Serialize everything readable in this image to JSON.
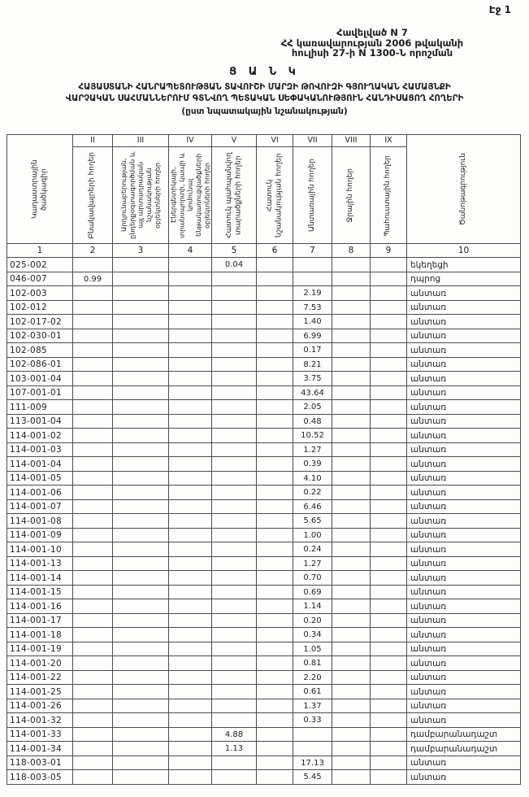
{
  "page": {
    "page_label": "Էջ 1"
  },
  "header": {
    "appendix_line1": "Հավելված N 7",
    "appendix_line2": "ՀՀ կառավարության 2006 թվականի",
    "appendix_line3": "հուլիսի 27-ի N 1300-Ն որոշման",
    "title": "Ց Ա Ն Կ",
    "subtitle_line1": "ՀԱՅԱՍՏԱՆԻ ՀԱՆՐԱՊԵՏՈՒԹՅԱՆ ՏԱՎՈՒՇԻ ՄԱՐԶԻ ԹՈՎՈՒԶԻ ԳՅՈՒՂԱԿԱՆ ՀԱՄԱՅՆՔԻ",
    "subtitle_line2": "ՎԱՐՉԱԿԱՆ ՍԱՀՄԱՆՆԵՐՈՒՄ ԳՏՆՎՈՂ ՊԵՏԱԿԱՆ ՍԵՓԱԿԱՆՈՒԹՅՈՒՆ ՀԱՆԴԻՍԱՑՈՂ ՀՈՂԵՐԻ",
    "subtitle_line3": "(ըստ նպատակային նշանակության)"
  },
  "table": {
    "roman_numerals": [
      "II",
      "III",
      "IV",
      "V",
      "VI",
      "VII",
      "VIII",
      "IX"
    ],
    "column_headers": [
      "Կադաստրային ծածկագիր",
      "Բնակավայրերի հողեր",
      "Արդյունաբերության, ընդերքօգտագործման և այլ արտադրական նշանակության օբյեկտների հողեր",
      "Էներգետիկայի, տրանսպորտի, կապի և կոմունալ ենթակառուցվածքների օբյեկտների հողեր",
      "Հատուկ պահպանվող տարածքների հողեր",
      "Հատուկ նշանակության հողեր",
      "Անտառային հողեր",
      "Ջրային հողեր",
      "Պահուստային հողեր",
      "Ծանոթագրություն"
    ],
    "column_numbers": [
      "1",
      "2",
      "3",
      "4",
      "5",
      "6",
      "7",
      "8",
      "9",
      "10"
    ],
    "rows": [
      {
        "code": "025-002",
        "values": [
          "",
          "",
          "",
          "0.04",
          "",
          "",
          "",
          ""
        ],
        "note": "եկեղեցի"
      },
      {
        "code": "046-007",
        "values": [
          "0.99",
          "",
          "",
          "",
          "",
          "",
          "",
          ""
        ],
        "note": "դպրոց"
      },
      {
        "code": "102-003",
        "values": [
          "",
          "",
          "",
          "",
          "",
          "2.19",
          "",
          ""
        ],
        "note": "անտառ"
      },
      {
        "code": "102-012",
        "values": [
          "",
          "",
          "",
          "",
          "",
          "7.53",
          "",
          ""
        ],
        "note": "անտառ"
      },
      {
        "code": "102-017-02",
        "values": [
          "",
          "",
          "",
          "",
          "",
          "1.40",
          "",
          ""
        ],
        "note": "անտառ"
      },
      {
        "code": "102-030-01",
        "values": [
          "",
          "",
          "",
          "",
          "",
          "6.99",
          "",
          ""
        ],
        "note": "անտառ"
      },
      {
        "code": "102-085",
        "values": [
          "",
          "",
          "",
          "",
          "",
          "0.17",
          "",
          ""
        ],
        "note": "անտառ"
      },
      {
        "code": "102-086-01",
        "values": [
          "",
          "",
          "",
          "",
          "",
          "8.21",
          "",
          ""
        ],
        "note": "անտառ"
      },
      {
        "code": "103-001-04",
        "values": [
          "",
          "",
          "",
          "",
          "",
          "3.75",
          "",
          ""
        ],
        "note": "անտառ"
      },
      {
        "code": "107-001-01",
        "values": [
          "",
          "",
          "",
          "",
          "",
          "43.64",
          "",
          ""
        ],
        "note": "անտառ"
      },
      {
        "code": "111-009",
        "values": [
          "",
          "",
          "",
          "",
          "",
          "2.05",
          "",
          ""
        ],
        "note": "անտառ"
      },
      {
        "code": "113-001-04",
        "values": [
          "",
          "",
          "",
          "",
          "",
          "0.48",
          "",
          ""
        ],
        "note": "անտառ"
      },
      {
        "code": "114-001-02",
        "values": [
          "",
          "",
          "",
          "",
          "",
          "10.52",
          "",
          ""
        ],
        "note": "անտառ"
      },
      {
        "code": "114-001-03",
        "values": [
          "",
          "",
          "",
          "",
          "",
          "1.27",
          "",
          ""
        ],
        "note": "անտառ"
      },
      {
        "code": "114-001-04",
        "values": [
          "",
          "",
          "",
          "",
          "",
          "0.39",
          "",
          ""
        ],
        "note": "անտառ"
      },
      {
        "code": "114-001-05",
        "values": [
          "",
          "",
          "",
          "",
          "",
          "4.10",
          "",
          ""
        ],
        "note": "անտառ"
      },
      {
        "code": "114-001-06",
        "values": [
          "",
          "",
          "",
          "",
          "",
          "0.22",
          "",
          ""
        ],
        "note": "անտառ"
      },
      {
        "code": "114-001-07",
        "values": [
          "",
          "",
          "",
          "",
          "",
          "6.46",
          "",
          ""
        ],
        "note": "անտառ"
      },
      {
        "code": "114-001-08",
        "values": [
          "",
          "",
          "",
          "",
          "",
          "5.65",
          "",
          ""
        ],
        "note": "անտառ"
      },
      {
        "code": "114-001-09",
        "values": [
          "",
          "",
          "",
          "",
          "",
          "1.00",
          "",
          ""
        ],
        "note": "անտառ"
      },
      {
        "code": "114-001-10",
        "values": [
          "",
          "",
          "",
          "",
          "",
          "0.24",
          "",
          ""
        ],
        "note": "անտառ"
      },
      {
        "code": "114-001-13",
        "values": [
          "",
          "",
          "",
          "",
          "",
          "1.27",
          "",
          ""
        ],
        "note": "անտառ"
      },
      {
        "code": "114-001-14",
        "values": [
          "",
          "",
          "",
          "",
          "",
          "0.70",
          "",
          ""
        ],
        "note": "անտառ"
      },
      {
        "code": "114-001-15",
        "values": [
          "",
          "",
          "",
          "",
          "",
          "0.69",
          "",
          ""
        ],
        "note": "անտառ"
      },
      {
        "code": "114-001-16",
        "values": [
          "",
          "",
          "",
          "",
          "",
          "1.14",
          "",
          ""
        ],
        "note": "անտառ"
      },
      {
        "code": "114-001-17",
        "values": [
          "",
          "",
          "",
          "",
          "",
          "0.20",
          "",
          ""
        ],
        "note": "անտառ"
      },
      {
        "code": "114-001-18",
        "values": [
          "",
          "",
          "",
          "",
          "",
          "0.34",
          "",
          ""
        ],
        "note": "անտառ"
      },
      {
        "code": "114-001-19",
        "values": [
          "",
          "",
          "",
          "",
          "",
          "1.05",
          "",
          ""
        ],
        "note": "անտառ"
      },
      {
        "code": "114-001-20",
        "values": [
          "",
          "",
          "",
          "",
          "",
          "0.81",
          "",
          ""
        ],
        "note": "անտառ"
      },
      {
        "code": "114-001-22",
        "values": [
          "",
          "",
          "",
          "",
          "",
          "2.20",
          "",
          ""
        ],
        "note": "անտառ"
      },
      {
        "code": "114-001-25",
        "values": [
          "",
          "",
          "",
          "",
          "",
          "0.61",
          "",
          ""
        ],
        "note": "անտառ"
      },
      {
        "code": "114-001-26",
        "values": [
          "",
          "",
          "",
          "",
          "",
          "1.37",
          "",
          ""
        ],
        "note": "անտառ"
      },
      {
        "code": "114-001-32",
        "values": [
          "",
          "",
          "",
          "",
          "",
          "0.33",
          "",
          ""
        ],
        "note": "անտառ"
      },
      {
        "code": "114-001-33",
        "values": [
          "",
          "",
          "",
          "4.88",
          "",
          "",
          "",
          ""
        ],
        "note": "դամբարանադաշտ"
      },
      {
        "code": "114-001-34",
        "values": [
          "",
          "",
          "",
          "1.13",
          "",
          "",
          "",
          ""
        ],
        "note": "դամբարանադաշտ"
      },
      {
        "code": "118-003-01",
        "values": [
          "",
          "",
          "",
          "",
          "",
          "17.13",
          "",
          ""
        ],
        "note": "անտառ"
      },
      {
        "code": "118-003-05",
        "values": [
          "",
          "",
          "",
          "",
          "",
          "5.45",
          "",
          ""
        ],
        "note": "անտառ"
      }
    ]
  }
}
